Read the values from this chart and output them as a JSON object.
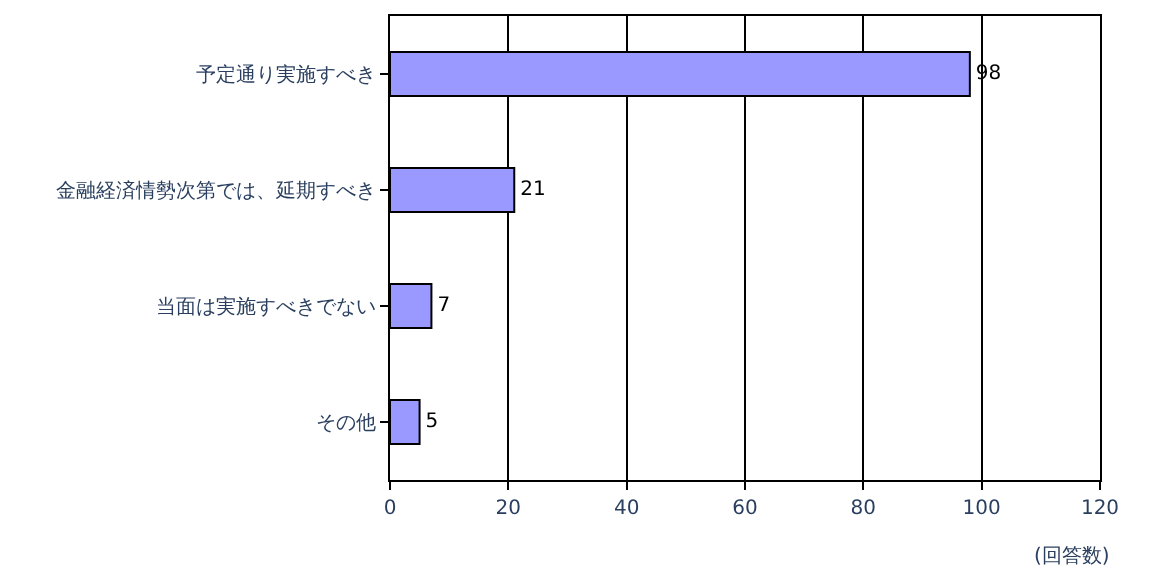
{
  "chart_data": {
    "type": "bar",
    "orientation": "horizontal",
    "categories": [
      "予定通り実施すべき",
      "金融経済情勢次第では、延期すべき",
      "当面は実施すべきでない",
      "その他"
    ],
    "values": [
      98,
      21,
      7,
      5
    ],
    "color": "#9999ff",
    "data_labels": true,
    "xlabel": "(回答数)",
    "xlim": [
      0,
      120
    ],
    "xticks": [
      0,
      20,
      40,
      60,
      80,
      100,
      120
    ],
    "grid": "x",
    "legend": false
  }
}
